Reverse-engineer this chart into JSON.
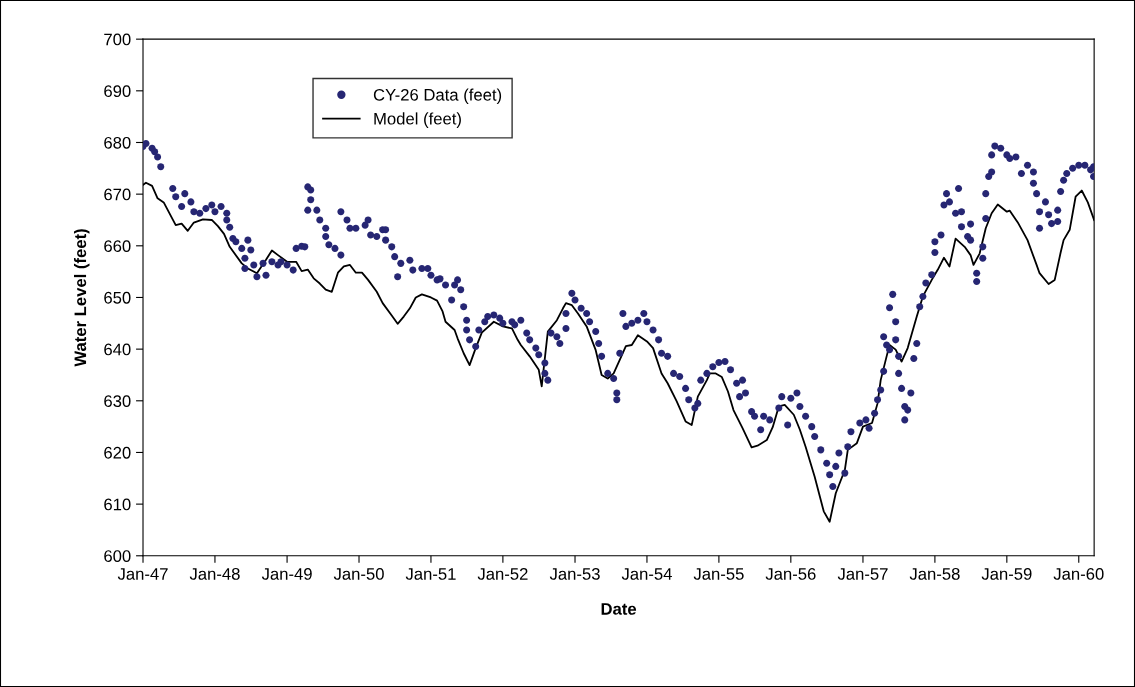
{
  "chart_data": {
    "type": "scatter",
    "xlabel": "Date",
    "ylabel": "Water Level (feet)",
    "xlim": [
      "1947-01-01",
      "1960-03-19"
    ],
    "ylim": [
      600,
      700
    ],
    "xticks": [
      {
        "value": "1947-01-01",
        "label": "Jan-47"
      },
      {
        "value": "1948-01-01",
        "label": "Jan-48"
      },
      {
        "value": "1949-01-01",
        "label": "Jan-49"
      },
      {
        "value": "1950-01-01",
        "label": "Jan-50"
      },
      {
        "value": "1951-01-01",
        "label": "Jan-51"
      },
      {
        "value": "1952-01-01",
        "label": "Jan-52"
      },
      {
        "value": "1953-01-01",
        "label": "Jan-53"
      },
      {
        "value": "1954-01-01",
        "label": "Jan-54"
      },
      {
        "value": "1955-01-01",
        "label": "Jan-55"
      },
      {
        "value": "1956-01-01",
        "label": "Jan-56"
      },
      {
        "value": "1957-01-01",
        "label": "Jan-57"
      },
      {
        "value": "1958-01-01",
        "label": "Jan-58"
      },
      {
        "value": "1959-01-01",
        "label": "Jan-59"
      },
      {
        "value": "1960-01-01",
        "label": "Jan-60"
      }
    ],
    "yticks": [
      600,
      610,
      620,
      630,
      640,
      650,
      660,
      670,
      680,
      690,
      700
    ],
    "grid": false,
    "legend": "top left",
    "series": [
      {
        "name": "CY-26 Data (feet)",
        "marker": "circle",
        "color": "#262673",
        "x": [
          "1947-01-01",
          "1947-01-16",
          "1947-02-16",
          "1947-03-01",
          "1947-03-16",
          "1947-04-01",
          "1947-06-01",
          "1947-06-16",
          "1947-07-16",
          "1947-08-01",
          "1947-09-01",
          "1947-09-16",
          "1947-10-16",
          "1947-11-16",
          "1947-12-16",
          "1948-01-01",
          "1948-02-01",
          "1948-03-01",
          "1948-03-01",
          "1948-03-16",
          "1948-04-01",
          "1948-04-16",
          "1948-05-16",
          "1948-06-16",
          "1948-06-01",
          "1948-07-01",
          "1948-06-01",
          "1948-07-16",
          "1948-08-01",
          "1948-09-01",
          "1948-09-16",
          "1948-10-16",
          "1948-11-16",
          "1948-12-01",
          "1949-01-01",
          "1949-02-01",
          "1949-02-16",
          "1949-03-16",
          "1949-04-01",
          "1949-04-16",
          "1949-05-01",
          "1949-05-01",
          "1949-04-16",
          "1949-06-01",
          "1949-06-16",
          "1949-07-16",
          "1949-07-16",
          "1949-08-01",
          "1949-09-01",
          "1949-10-01",
          "1949-10-01",
          "1949-11-01",
          "1949-11-16",
          "1949-12-16",
          "1950-02-01",
          "1950-02-16",
          "1950-03-01",
          "1950-04-01",
          "1950-05-01",
          "1950-05-16",
          "1950-05-16",
          "1950-06-16",
          "1950-07-01",
          "1950-07-16",
          "1950-08-01",
          "1950-09-16",
          "1950-10-01",
          "1950-11-16",
          "1950-12-16",
          "1951-01-01",
          "1951-02-01",
          "1951-02-16",
          "1951-03-16",
          "1951-04-16",
          "1951-05-01",
          "1951-05-16",
          "1951-06-01",
          "1951-06-16",
          "1951-07-01",
          "1951-07-01",
          "1951-07-16",
          "1951-08-16",
          "1951-09-01",
          "1951-10-01",
          "1951-10-16",
          "1951-11-16",
          "1951-12-16",
          "1952-01-01",
          "1952-02-16",
          "1952-03-01",
          "1952-04-01",
          "1952-05-01",
          "1952-05-16",
          "1952-06-16",
          "1952-07-01",
          "1952-08-01",
          "1952-08-01",
          "1952-08-16",
          "1952-09-01",
          "1952-10-01",
          "1952-10-16",
          "1952-11-16",
          "1952-11-16",
          "1952-12-16",
          "1953-01-01",
          "1953-02-01",
          "1953-03-01",
          "1953-03-16",
          "1953-04-16",
          "1953-05-01",
          "1953-05-16",
          "1953-06-16",
          "1953-07-16",
          "1953-08-01",
          "1953-08-01",
          "1953-08-16",
          "1953-09-01",
          "1953-09-16",
          "1953-10-16",
          "1953-11-16",
          "1953-12-16",
          "1954-01-01",
          "1954-02-01",
          "1954-03-01",
          "1954-03-16",
          "1954-04-16",
          "1954-05-16",
          "1954-06-16",
          "1954-07-16",
          "1954-08-01",
          "1954-09-01",
          "1954-09-16",
          "1954-10-01",
          "1954-11-01",
          "1954-12-01",
          "1955-01-01",
          "1955-02-01",
          "1955-03-01",
          "1955-04-01",
          "1955-04-16",
          "1955-05-01",
          "1955-05-16",
          "1955-06-16",
          "1955-07-01",
          "1955-08-01",
          "1955-08-16",
          "1955-09-16",
          "1955-11-01",
          "1955-11-16",
          "1955-12-16",
          "1956-01-01",
          "1956-02-01",
          "1956-02-16",
          "1956-03-16",
          "1956-04-16",
          "1956-05-01",
          "1956-06-01",
          "1956-07-01",
          "1956-07-16",
          "1956-08-01",
          "1956-08-16",
          "1956-09-01",
          "1956-10-01",
          "1956-10-16",
          "1956-11-01",
          "1956-12-16",
          "1957-01-16",
          "1957-02-01",
          "1957-03-01",
          "1957-03-16",
          "1957-04-01",
          "1957-04-16",
          "1957-04-16",
          "1957-05-01",
          "1957-05-16",
          "1957-05-16",
          "1957-06-01",
          "1957-06-16",
          "1957-06-16",
          "1957-07-01",
          "1957-07-01",
          "1957-07-16",
          "1957-08-01",
          "1957-08-01",
          "1957-08-16",
          "1957-09-01",
          "1957-09-16",
          "1957-10-01",
          "1957-10-16",
          "1957-11-01",
          "1957-11-16",
          "1957-12-16",
          "1958-01-01",
          "1958-01-01",
          "1958-02-01",
          "1958-02-16",
          "1958-03-01",
          "1958-03-16",
          "1958-04-16",
          "1958-05-01",
          "1958-05-16",
          "1958-05-16",
          "1958-06-16",
          "1958-07-01",
          "1958-07-01",
          "1958-08-01",
          "1958-08-01",
          "1958-09-01",
          "1958-09-01",
          "1958-09-16",
          "1958-09-16",
          "1958-10-01",
          "1958-10-16",
          "1958-10-16",
          "1958-11-01",
          "1958-12-01",
          "1959-01-01",
          "1959-01-16",
          "1959-02-16",
          "1959-03-16",
          "1959-04-16",
          "1959-05-16",
          "1959-05-16",
          "1959-06-01",
          "1959-06-16",
          "1959-06-16",
          "1959-07-16",
          "1959-08-01",
          "1959-08-16",
          "1959-09-16",
          "1959-09-16",
          "1959-10-01",
          "1959-10-16",
          "1959-11-01",
          "1959-12-01",
          "1960-01-01",
          "1960-02-01",
          "1960-03-01",
          "1960-03-16",
          "1960-03-16"
        ],
        "values": [
          679.2,
          679.8,
          678.9,
          678.2,
          677.2,
          675.3,
          671.1,
          669.5,
          667.6,
          670.1,
          668.5,
          666.6,
          666.3,
          667.2,
          667.9,
          666.6,
          667.6,
          666.3,
          665.0,
          663.6,
          661.4,
          660.8,
          659.5,
          661.1,
          657.6,
          659.2,
          655.6,
          656.3,
          654.0,
          656.6,
          654.3,
          656.9,
          656.3,
          656.9,
          656.3,
          655.3,
          659.5,
          659.9,
          659.8,
          671.4,
          670.8,
          668.9,
          666.9,
          666.9,
          665.0,
          663.4,
          661.8,
          660.2,
          659.5,
          658.2,
          666.6,
          665.0,
          663.4,
          663.4,
          664.0,
          665.0,
          662.1,
          661.8,
          663.1,
          663.1,
          661.1,
          659.8,
          657.9,
          654.0,
          656.6,
          657.2,
          655.3,
          655.6,
          655.6,
          654.3,
          653.4,
          653.6,
          652.4,
          649.5,
          652.4,
          653.4,
          651.5,
          648.2,
          645.6,
          643.7,
          641.8,
          640.5,
          643.7,
          645.3,
          646.3,
          646.6,
          646.0,
          645.0,
          645.3,
          644.7,
          645.6,
          643.1,
          641.8,
          640.2,
          638.9,
          637.3,
          635.3,
          634.0,
          643.1,
          642.4,
          641.1,
          644.0,
          646.9,
          650.8,
          649.5,
          647.9,
          646.9,
          645.3,
          643.4,
          641.1,
          638.6,
          635.3,
          634.3,
          631.5,
          630.2,
          639.2,
          646.9,
          644.4,
          645.0,
          645.6,
          646.9,
          645.3,
          643.7,
          641.8,
          639.2,
          638.6,
          635.3,
          634.7,
          632.4,
          630.2,
          628.6,
          629.5,
          634.0,
          635.3,
          636.6,
          637.4,
          637.6,
          636.0,
          633.4,
          630.8,
          634.0,
          631.5,
          627.9,
          627.0,
          624.4,
          627.0,
          626.3,
          628.6,
          630.8,
          625.3,
          630.5,
          631.5,
          628.9,
          627.0,
          625.0,
          623.1,
          620.5,
          617.9,
          615.7,
          613.4,
          617.3,
          619.9,
          616.0,
          621.1,
          624.0,
          625.7,
          626.3,
          624.7,
          627.6,
          630.2,
          632.1,
          635.7,
          642.4,
          640.8,
          639.9,
          648.0,
          650.6,
          645.3,
          641.8,
          638.6,
          635.3,
          632.4,
          628.9,
          626.3,
          628.2,
          631.5,
          638.2,
          641.1,
          648.2,
          650.2,
          652.8,
          654.4,
          658.7,
          660.8,
          662.1,
          667.9,
          670.1,
          668.5,
          666.3,
          671.1,
          666.6,
          663.7,
          661.8,
          661.1,
          664.2,
          654.7,
          653.1,
          657.6,
          659.8,
          665.3,
          670.1,
          673.4,
          674.3,
          677.6,
          679.3,
          678.9,
          677.6,
          676.9,
          677.2,
          674.0,
          675.6,
          674.3,
          672.1,
          670.1,
          666.6,
          663.4,
          668.5,
          666.0,
          664.3,
          666.9,
          664.7,
          670.5,
          672.7,
          674.0,
          675.0,
          675.6,
          675.6,
          674.7,
          675.3,
          673.4
        ]
      },
      {
        "name": "Model (feet)",
        "type": "line",
        "marker": "none",
        "line_style": "solid",
        "color": "#000000",
        "x": [
          "1947-01-01",
          "1947-01-16",
          "1947-02-16",
          "1947-03-16",
          "1947-04-16",
          "1947-06-16",
          "1947-07-16",
          "1947-08-16",
          "1947-09-16",
          "1947-11-01",
          "1947-12-16",
          "1948-01-16",
          "1948-02-16",
          "1948-03-16",
          "1948-05-16",
          "1948-06-16",
          "1948-08-01",
          "1948-09-16",
          "1948-10-16",
          "1948-11-16",
          "1949-01-01",
          "1949-02-16",
          "1949-03-16",
          "1949-04-16",
          "1949-05-16",
          "1949-06-16",
          "1949-07-16",
          "1949-08-16",
          "1949-09-16",
          "1949-10-16",
          "1949-11-16",
          "1949-12-16",
          "1950-01-16",
          "1950-02-16",
          "1950-04-01",
          "1950-05-01",
          "1950-06-16",
          "1950-07-16",
          "1950-08-16",
          "1950-09-16",
          "1950-10-16",
          "1950-11-16",
          "1951-01-01",
          "1951-02-01",
          "1951-03-01",
          "1951-03-16",
          "1951-05-01",
          "1951-05-16",
          "1951-06-16",
          "1951-07-16",
          "1951-08-16",
          "1951-09-16",
          "1951-11-16",
          "1952-01-01",
          "1952-02-16",
          "1952-03-16",
          "1952-04-01",
          "1952-05-16",
          "1952-07-01",
          "1952-07-16",
          "1952-08-16",
          "1952-10-01",
          "1952-11-01",
          "1952-11-16",
          "1952-12-16",
          "1953-01-16",
          "1953-03-01",
          "1953-04-16",
          "1953-05-16",
          "1953-06-16",
          "1953-07-16",
          "1953-08-16",
          "1953-09-16",
          "1953-10-16",
          "1953-11-16",
          "1954-01-01",
          "1954-02-01",
          "1954-03-16",
          "1954-04-16",
          "1954-06-01",
          "1954-07-16",
          "1954-08-16",
          "1954-09-16",
          "1954-11-01",
          "1954-11-16",
          "1954-12-16",
          "1955-01-16",
          "1955-02-16",
          "1955-03-16",
          "1955-05-01",
          "1955-06-16",
          "1955-07-16",
          "1955-09-01",
          "1955-10-01",
          "1955-11-01",
          "1955-12-01",
          "1956-01-16",
          "1956-02-16",
          "1956-03-16",
          "1956-05-01",
          "1956-06-16",
          "1956-07-16",
          "1956-08-16",
          "1956-10-01",
          "1956-10-16",
          "1956-12-01",
          "1957-01-01",
          "1957-02-16",
          "1957-03-16",
          "1957-04-01",
          "1957-05-01",
          "1957-05-16",
          "1957-06-16",
          "1957-07-16",
          "1957-08-16",
          "1957-10-01",
          "1957-11-01",
          "1957-12-16",
          "1958-01-16",
          "1958-02-16",
          "1958-03-16",
          "1958-04-16",
          "1958-06-01",
          "1958-07-01",
          "1958-07-16",
          "1958-08-16",
          "1958-09-16",
          "1958-10-16",
          "1958-11-16",
          "1959-01-01",
          "1959-01-16",
          "1959-03-01",
          "1959-04-16",
          "1959-06-01",
          "1959-06-16",
          "1959-08-01",
          "1959-09-01",
          "1959-10-01",
          "1959-10-16",
          "1959-11-16",
          "1959-12-16",
          "1960-01-16",
          "1960-02-16",
          "1960-03-19"
        ],
        "values": [
          671.8,
          672.2,
          671.6,
          669.2,
          668.4,
          664.0,
          664.3,
          662.9,
          664.5,
          665.1,
          665.0,
          663.8,
          662.3,
          659.8,
          656.6,
          655.6,
          654.7,
          657.3,
          659.1,
          658.2,
          656.9,
          656.9,
          655.1,
          655.4,
          653.7,
          652.7,
          651.5,
          651.1,
          654.8,
          656.0,
          656.3,
          654.8,
          654.8,
          653.4,
          651.1,
          648.9,
          646.5,
          644.9,
          646.3,
          647.9,
          650.0,
          650.6,
          650.0,
          649.4,
          647.3,
          645.3,
          643.7,
          642.1,
          639.2,
          636.9,
          640.2,
          643.2,
          645.3,
          644.4,
          644.0,
          641.8,
          640.8,
          638.6,
          636.0,
          632.8,
          643.4,
          645.6,
          647.9,
          648.9,
          648.5,
          646.9,
          644.4,
          639.8,
          635.0,
          634.3,
          635.3,
          637.9,
          640.6,
          640.8,
          642.7,
          641.5,
          640.2,
          635.3,
          633.4,
          629.9,
          626.0,
          625.3,
          630.8,
          634.0,
          635.3,
          635.3,
          634.6,
          631.8,
          628.2,
          624.7,
          621.0,
          621.3,
          622.4,
          624.9,
          628.9,
          629.2,
          627.3,
          624.4,
          621.1,
          615.3,
          608.6,
          606.6,
          612.1,
          616.6,
          620.5,
          621.8,
          625.0,
          625.7,
          629.5,
          634.0,
          638.6,
          640.8,
          639.9,
          637.6,
          640.2,
          646.3,
          650.2,
          653.4,
          655.4,
          657.7,
          656.0,
          661.4,
          659.8,
          658.2,
          656.3,
          658.5,
          663.4,
          666.3,
          668.0,
          666.6,
          666.8,
          664.3,
          661.1,
          656.3,
          654.7,
          652.6,
          653.4,
          658.7,
          661.1,
          663.1,
          669.5,
          670.7,
          668.4,
          665.0
        ]
      }
    ]
  }
}
